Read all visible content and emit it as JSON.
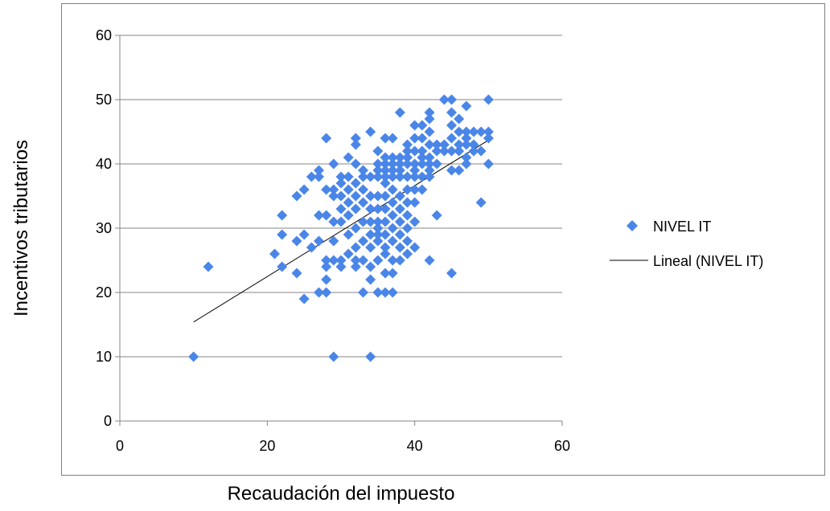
{
  "chart_data": {
    "type": "scatter",
    "title": "",
    "xlabel": "Recaudación del impuesto",
    "ylabel": "Incentivos tributarios",
    "xlim": [
      0,
      60
    ],
    "ylim": [
      0,
      60
    ],
    "x_ticks": [
      "0",
      "20",
      "40",
      "60"
    ],
    "y_ticks": [
      "0",
      "10",
      "20",
      "30",
      "40",
      "50",
      "60"
    ],
    "grid": "horizontal",
    "legend_position": "right",
    "marker_color": "#4a86e8",
    "series": [
      {
        "name": "NIVEL IT",
        "marker": "diamond",
        "points": [
          [
            10,
            10
          ],
          [
            12,
            24
          ],
          [
            29,
            10
          ],
          [
            34,
            10
          ],
          [
            21,
            26
          ],
          [
            22,
            24
          ],
          [
            22,
            29
          ],
          [
            22,
            32
          ],
          [
            24,
            23
          ],
          [
            24,
            28
          ],
          [
            24,
            35
          ],
          [
            25,
            19
          ],
          [
            25,
            29
          ],
          [
            25,
            36
          ],
          [
            26,
            27
          ],
          [
            26,
            38
          ],
          [
            27,
            20
          ],
          [
            27,
            28
          ],
          [
            27,
            32
          ],
          [
            27,
            38
          ],
          [
            27,
            39
          ],
          [
            28,
            20
          ],
          [
            28,
            22
          ],
          [
            28,
            24
          ],
          [
            28,
            25
          ],
          [
            28,
            32
          ],
          [
            28,
            36
          ],
          [
            28,
            44
          ],
          [
            29,
            25
          ],
          [
            29,
            28
          ],
          [
            29,
            31
          ],
          [
            29,
            35
          ],
          [
            29,
            36
          ],
          [
            29,
            40
          ],
          [
            30,
            24
          ],
          [
            30,
            25
          ],
          [
            30,
            31
          ],
          [
            30,
            33
          ],
          [
            30,
            35
          ],
          [
            30,
            37
          ],
          [
            30,
            38
          ],
          [
            31,
            26
          ],
          [
            31,
            29
          ],
          [
            31,
            32
          ],
          [
            31,
            34
          ],
          [
            31,
            36
          ],
          [
            31,
            38
          ],
          [
            31,
            41
          ],
          [
            32,
            24
          ],
          [
            32,
            25
          ],
          [
            32,
            27
          ],
          [
            32,
            30
          ],
          [
            32,
            33
          ],
          [
            32,
            35
          ],
          [
            32,
            37
          ],
          [
            32,
            40
          ],
          [
            32,
            43
          ],
          [
            32,
            44
          ],
          [
            33,
            20
          ],
          [
            33,
            25
          ],
          [
            33,
            28
          ],
          [
            33,
            31
          ],
          [
            33,
            34
          ],
          [
            33,
            36
          ],
          [
            33,
            38
          ],
          [
            33,
            39
          ],
          [
            34,
            22
          ],
          [
            34,
            24
          ],
          [
            34,
            27
          ],
          [
            34,
            29
          ],
          [
            34,
            31
          ],
          [
            34,
            33
          ],
          [
            34,
            35
          ],
          [
            34,
            38
          ],
          [
            34,
            45
          ],
          [
            35,
            20
          ],
          [
            35,
            25
          ],
          [
            35,
            28
          ],
          [
            35,
            29
          ],
          [
            35,
            30
          ],
          [
            35,
            31
          ],
          [
            35,
            33
          ],
          [
            35,
            35
          ],
          [
            35,
            38
          ],
          [
            35,
            39
          ],
          [
            35,
            40
          ],
          [
            35,
            42
          ],
          [
            36,
            20
          ],
          [
            36,
            23
          ],
          [
            36,
            26
          ],
          [
            36,
            27
          ],
          [
            36,
            29
          ],
          [
            36,
            31
          ],
          [
            36,
            33
          ],
          [
            36,
            35
          ],
          [
            36,
            37
          ],
          [
            36,
            38
          ],
          [
            36,
            39
          ],
          [
            36,
            40
          ],
          [
            36,
            41
          ],
          [
            36,
            44
          ],
          [
            37,
            20
          ],
          [
            37,
            23
          ],
          [
            37,
            25
          ],
          [
            37,
            28
          ],
          [
            37,
            30
          ],
          [
            37,
            32
          ],
          [
            37,
            34
          ],
          [
            37,
            36
          ],
          [
            37,
            38
          ],
          [
            37,
            39
          ],
          [
            37,
            40
          ],
          [
            37,
            41
          ],
          [
            37,
            44
          ],
          [
            38,
            25
          ],
          [
            38,
            27
          ],
          [
            38,
            29
          ],
          [
            38,
            31
          ],
          [
            38,
            33
          ],
          [
            38,
            35
          ],
          [
            38,
            38
          ],
          [
            38,
            39
          ],
          [
            38,
            40
          ],
          [
            38,
            41
          ],
          [
            38,
            48
          ],
          [
            39,
            26
          ],
          [
            39,
            28
          ],
          [
            39,
            30
          ],
          [
            39,
            32
          ],
          [
            39,
            34
          ],
          [
            39,
            36
          ],
          [
            39,
            38
          ],
          [
            39,
            40
          ],
          [
            39,
            41
          ],
          [
            39,
            42
          ],
          [
            39,
            43
          ],
          [
            40,
            27
          ],
          [
            40,
            31
          ],
          [
            40,
            34
          ],
          [
            40,
            36
          ],
          [
            40,
            38
          ],
          [
            40,
            39
          ],
          [
            40,
            40
          ],
          [
            40,
            42
          ],
          [
            40,
            44
          ],
          [
            40,
            46
          ],
          [
            41,
            36
          ],
          [
            41,
            38
          ],
          [
            41,
            40
          ],
          [
            41,
            41
          ],
          [
            41,
            42
          ],
          [
            41,
            44
          ],
          [
            41,
            46
          ],
          [
            42,
            25
          ],
          [
            42,
            38
          ],
          [
            42,
            39
          ],
          [
            42,
            40
          ],
          [
            42,
            41
          ],
          [
            42,
            43
          ],
          [
            42,
            45
          ],
          [
            42,
            47
          ],
          [
            42,
            48
          ],
          [
            43,
            32
          ],
          [
            43,
            40
          ],
          [
            43,
            42
          ],
          [
            43,
            43
          ],
          [
            44,
            42
          ],
          [
            44,
            43
          ],
          [
            44,
            50
          ],
          [
            45,
            23
          ],
          [
            45,
            39
          ],
          [
            45,
            42
          ],
          [
            45,
            44
          ],
          [
            45,
            46
          ],
          [
            45,
            48
          ],
          [
            45,
            50
          ],
          [
            46,
            39
          ],
          [
            46,
            42
          ],
          [
            46,
            43
          ],
          [
            46,
            45
          ],
          [
            46,
            47
          ],
          [
            47,
            40
          ],
          [
            47,
            41
          ],
          [
            47,
            43
          ],
          [
            47,
            44
          ],
          [
            47,
            45
          ],
          [
            47,
            49
          ],
          [
            48,
            42
          ],
          [
            48,
            43
          ],
          [
            48,
            45
          ],
          [
            49,
            34
          ],
          [
            49,
            42
          ],
          [
            49,
            45
          ],
          [
            50,
            40
          ],
          [
            50,
            44
          ],
          [
            50,
            45
          ],
          [
            50,
            50
          ]
        ]
      },
      {
        "name": "Lineal (NIVEL IT)",
        "type": "trendline",
        "color": "#000000",
        "x": [
          10,
          50
        ],
        "y": [
          15.4,
          43.7
        ]
      }
    ]
  }
}
